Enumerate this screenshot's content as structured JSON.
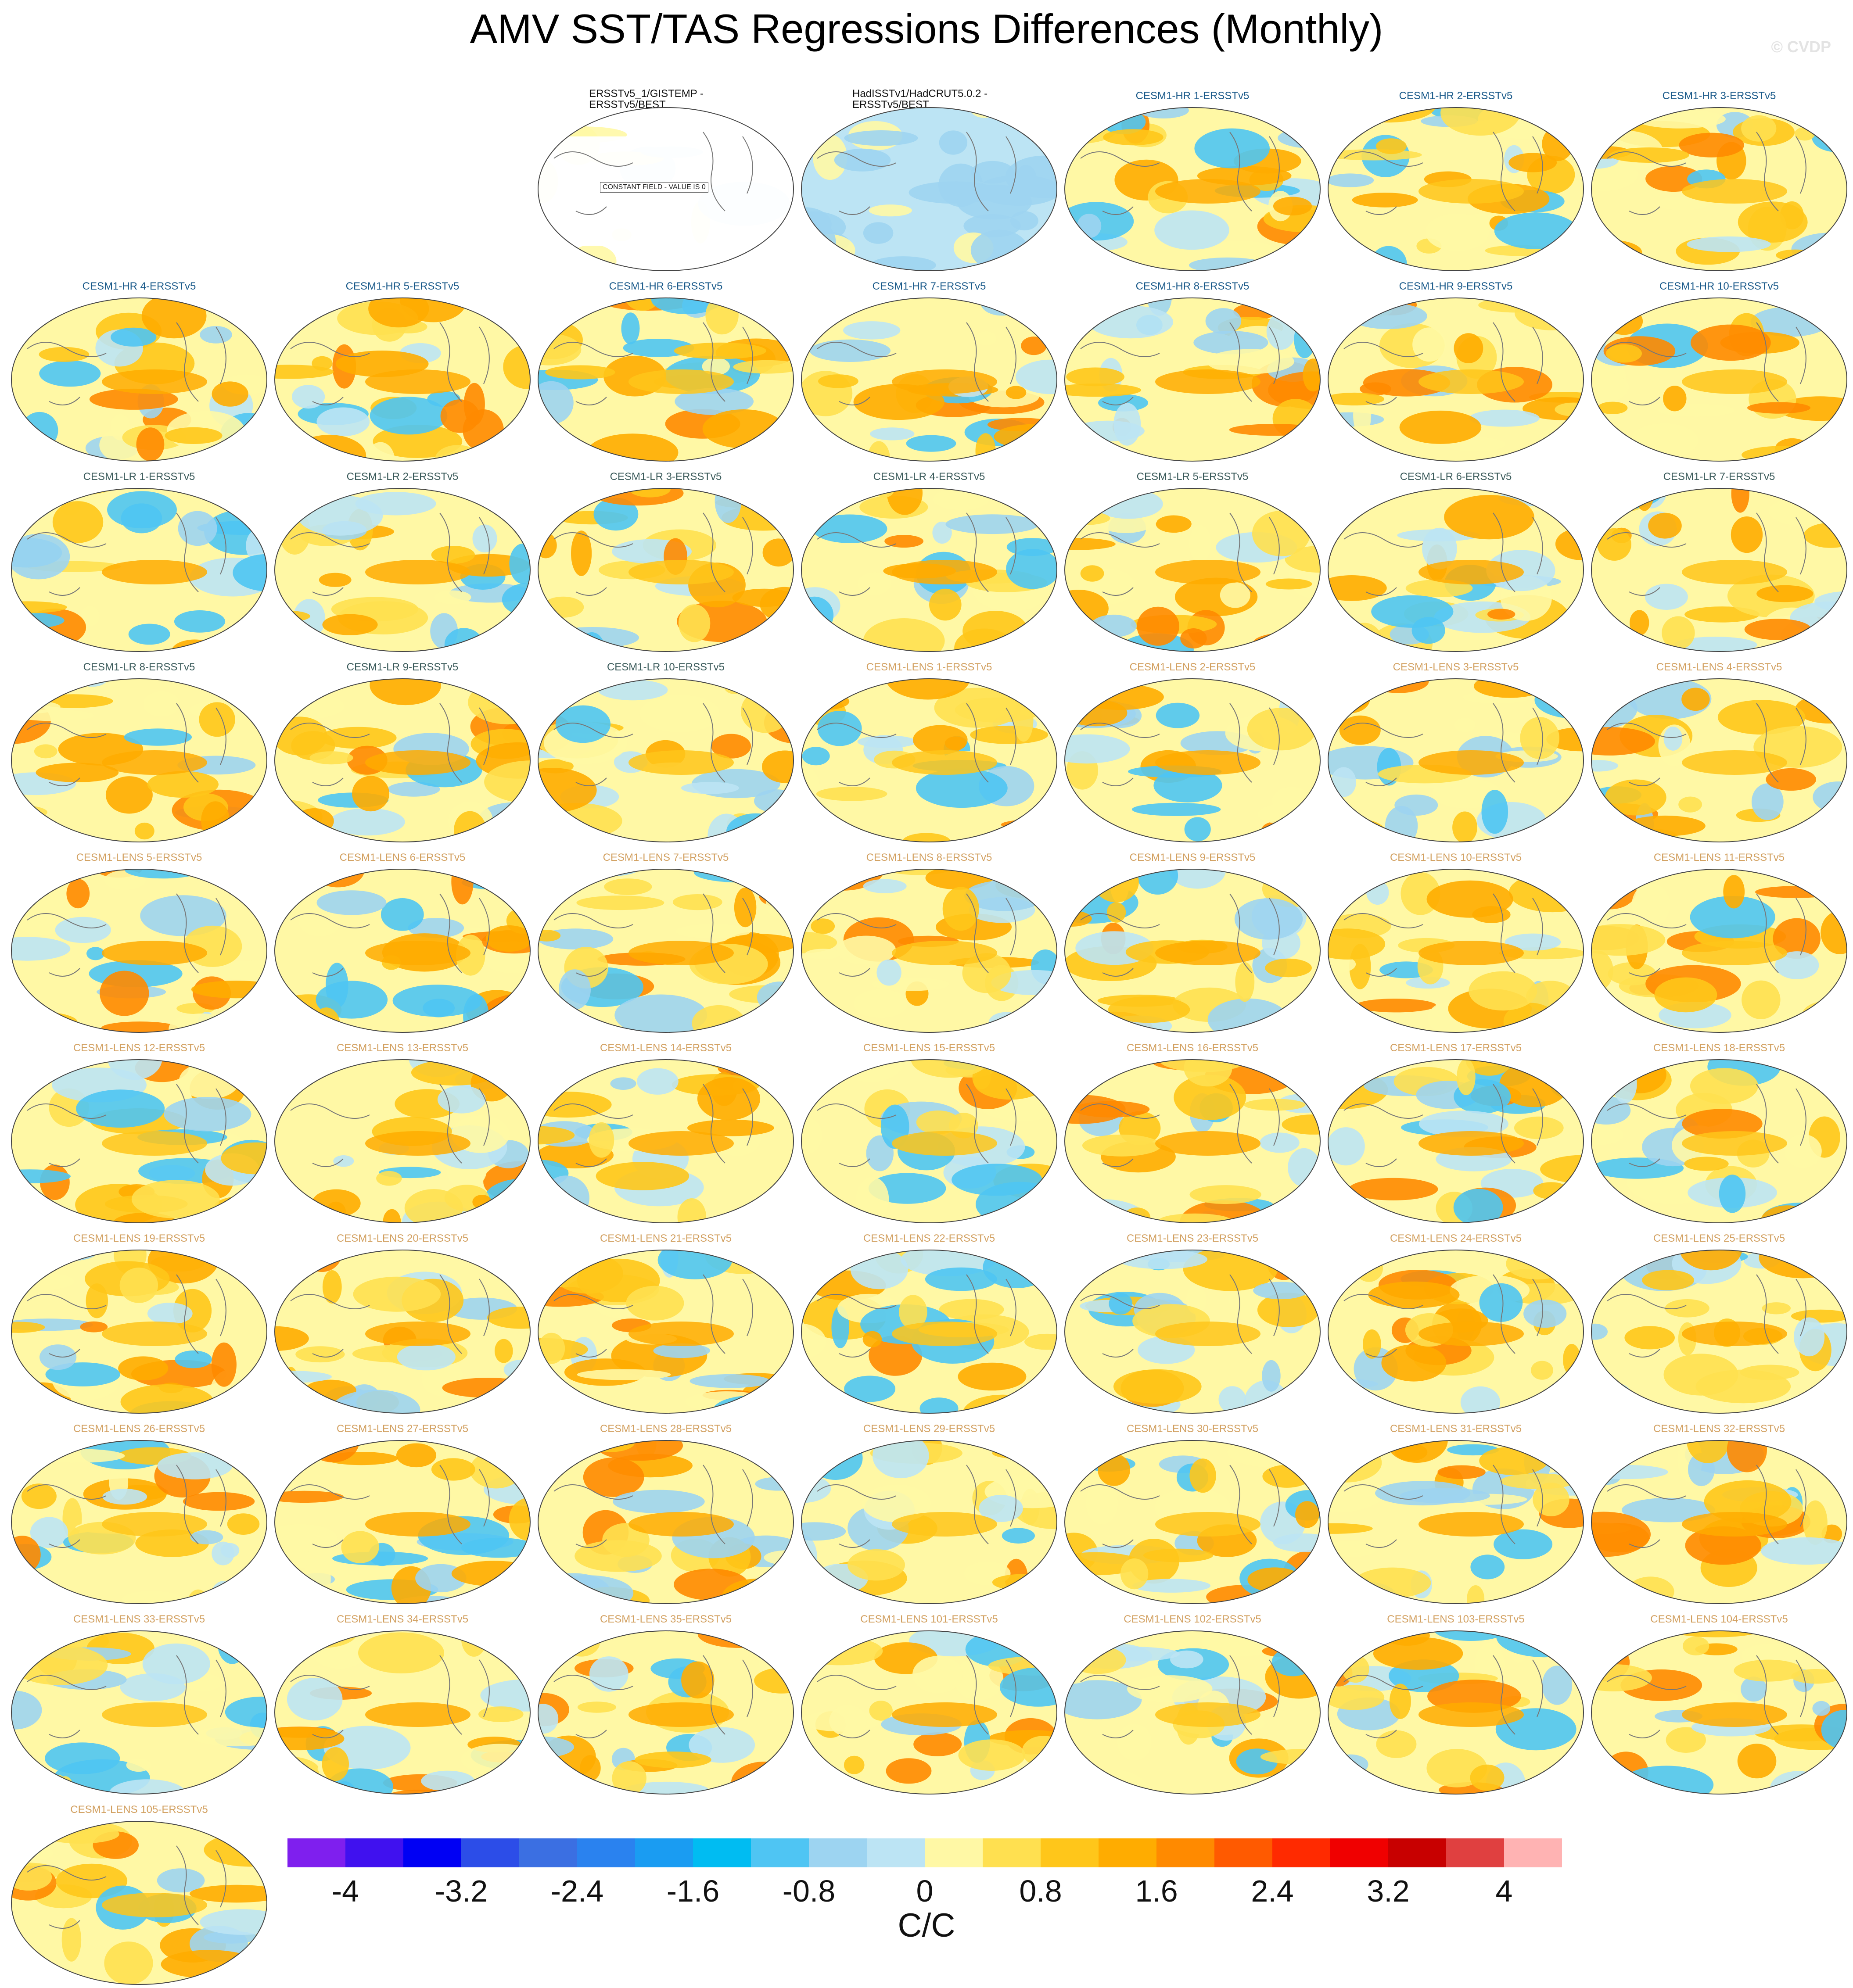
{
  "title": "AMV SST/TAS Regressions Differences (Monthly)",
  "watermark": "© CVDP",
  "colorbar": {
    "units": "C/C",
    "tick_labels": [
      "-4",
      "-3.2",
      "-2.4",
      "-1.6",
      "-0.8",
      "0",
      "0.8",
      "1.6",
      "2.4",
      "3.2",
      "4"
    ],
    "colors": [
      "#7f1fee",
      "#4011ef",
      "#0000f4",
      "#2c4de8",
      "#3b6fe2",
      "#2a82ef",
      "#1a9cf2",
      "#00bcf2",
      "#4fc5f3",
      "#9dd4f1",
      "#bce4f4",
      "#fff8a5",
      "#ffe050",
      "#ffc61a",
      "#ffac00",
      "#ff8a00",
      "#ff5a00",
      "#ff2a00",
      "#f00000",
      "#c80000",
      "#e04040",
      "#ffb3b3"
    ]
  },
  "label_colors": {
    "obs": "#111111",
    "hr": "#1a5a8a",
    "lr": "#3a5a5a",
    "lens": "#d2a060"
  },
  "constant_field_note": "CONSTANT FIELD - VALUE IS 0",
  "panels": [
    {
      "label": "ERSSTv5_1/GISTEMP -\nERSSTv5/BEST",
      "group": "obs",
      "constant": true
    },
    {
      "label": "HadISSTv1/HadCRUT5.0.2 -\nERSSTv5/BEST",
      "group": "obs"
    },
    {
      "label": "CESM1-HR 1-ERSSTv5",
      "group": "hr"
    },
    {
      "label": "CESM1-HR 2-ERSSTv5",
      "group": "hr"
    },
    {
      "label": "CESM1-HR 3-ERSSTv5",
      "group": "hr"
    },
    {
      "label": "CESM1-HR 4-ERSSTv5",
      "group": "hr"
    },
    {
      "label": "CESM1-HR 5-ERSSTv5",
      "group": "hr"
    },
    {
      "label": "CESM1-HR 6-ERSSTv5",
      "group": "hr"
    },
    {
      "label": "CESM1-HR 7-ERSSTv5",
      "group": "hr"
    },
    {
      "label": "CESM1-HR 8-ERSSTv5",
      "group": "hr"
    },
    {
      "label": "CESM1-HR 9-ERSSTv5",
      "group": "hr"
    },
    {
      "label": "CESM1-HR 10-ERSSTv5",
      "group": "hr"
    },
    {
      "label": "CESM1-LR 1-ERSSTv5",
      "group": "lr"
    },
    {
      "label": "CESM1-LR 2-ERSSTv5",
      "group": "lr"
    },
    {
      "label": "CESM1-LR 3-ERSSTv5",
      "group": "lr"
    },
    {
      "label": "CESM1-LR 4-ERSSTv5",
      "group": "lr"
    },
    {
      "label": "CESM1-LR 5-ERSSTv5",
      "group": "lr"
    },
    {
      "label": "CESM1-LR 6-ERSSTv5",
      "group": "lr"
    },
    {
      "label": "CESM1-LR 7-ERSSTv5",
      "group": "lr"
    },
    {
      "label": "CESM1-LR 8-ERSSTv5",
      "group": "lr"
    },
    {
      "label": "CESM1-LR 9-ERSSTv5",
      "group": "lr"
    },
    {
      "label": "CESM1-LR 10-ERSSTv5",
      "group": "lr"
    },
    {
      "label": "CESM1-LENS 1-ERSSTv5",
      "group": "lens"
    },
    {
      "label": "CESM1-LENS 2-ERSSTv5",
      "group": "lens"
    },
    {
      "label": "CESM1-LENS 3-ERSSTv5",
      "group": "lens"
    },
    {
      "label": "CESM1-LENS 4-ERSSTv5",
      "group": "lens"
    },
    {
      "label": "CESM1-LENS 5-ERSSTv5",
      "group": "lens"
    },
    {
      "label": "CESM1-LENS 6-ERSSTv5",
      "group": "lens"
    },
    {
      "label": "CESM1-LENS 7-ERSSTv5",
      "group": "lens"
    },
    {
      "label": "CESM1-LENS 8-ERSSTv5",
      "group": "lens"
    },
    {
      "label": "CESM1-LENS 9-ERSSTv5",
      "group": "lens"
    },
    {
      "label": "CESM1-LENS 10-ERSSTv5",
      "group": "lens"
    },
    {
      "label": "CESM1-LENS 11-ERSSTv5",
      "group": "lens"
    },
    {
      "label": "CESM1-LENS 12-ERSSTv5",
      "group": "lens"
    },
    {
      "label": "CESM1-LENS 13-ERSSTv5",
      "group": "lens"
    },
    {
      "label": "CESM1-LENS 14-ERSSTv5",
      "group": "lens"
    },
    {
      "label": "CESM1-LENS 15-ERSSTv5",
      "group": "lens"
    },
    {
      "label": "CESM1-LENS 16-ERSSTv5",
      "group": "lens"
    },
    {
      "label": "CESM1-LENS 17-ERSSTv5",
      "group": "lens"
    },
    {
      "label": "CESM1-LENS 18-ERSSTv5",
      "group": "lens"
    },
    {
      "label": "CESM1-LENS 19-ERSSTv5",
      "group": "lens"
    },
    {
      "label": "CESM1-LENS 20-ERSSTv5",
      "group": "lens"
    },
    {
      "label": "CESM1-LENS 21-ERSSTv5",
      "group": "lens"
    },
    {
      "label": "CESM1-LENS 22-ERSSTv5",
      "group": "lens"
    },
    {
      "label": "CESM1-LENS 23-ERSSTv5",
      "group": "lens"
    },
    {
      "label": "CESM1-LENS 24-ERSSTv5",
      "group": "lens"
    },
    {
      "label": "CESM1-LENS 25-ERSSTv5",
      "group": "lens"
    },
    {
      "label": "CESM1-LENS 26-ERSSTv5",
      "group": "lens"
    },
    {
      "label": "CESM1-LENS 27-ERSSTv5",
      "group": "lens"
    },
    {
      "label": "CESM1-LENS 28-ERSSTv5",
      "group": "lens"
    },
    {
      "label": "CESM1-LENS 29-ERSSTv5",
      "group": "lens"
    },
    {
      "label": "CESM1-LENS 30-ERSSTv5",
      "group": "lens"
    },
    {
      "label": "CESM1-LENS 31-ERSSTv5",
      "group": "lens"
    },
    {
      "label": "CESM1-LENS 32-ERSSTv5",
      "group": "lens"
    },
    {
      "label": "CESM1-LENS 33-ERSSTv5",
      "group": "lens"
    },
    {
      "label": "CESM1-LENS 34-ERSSTv5",
      "group": "lens"
    },
    {
      "label": "CESM1-LENS 35-ERSSTv5",
      "group": "lens"
    },
    {
      "label": "CESM1-LENS 101-ERSSTv5",
      "group": "lens"
    },
    {
      "label": "CESM1-LENS 102-ERSSTv5",
      "group": "lens"
    },
    {
      "label": "CESM1-LENS 103-ERSSTv5",
      "group": "lens"
    },
    {
      "label": "CESM1-LENS 104-ERSSTv5",
      "group": "lens"
    },
    {
      "label": "CESM1-LENS 105-ERSSTv5",
      "group": "lens"
    }
  ]
}
